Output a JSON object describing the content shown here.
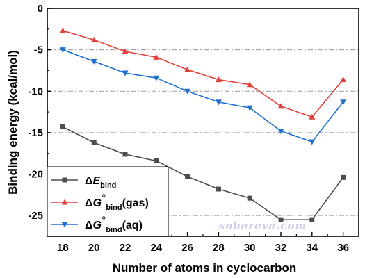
{
  "chart_data": {
    "type": "line",
    "title": "",
    "xlabel": "Number of atoms in cyclocarbon",
    "ylabel": "Binding energy (kcal/mol)",
    "x": [
      18,
      20,
      22,
      24,
      26,
      28,
      30,
      32,
      34,
      36
    ],
    "xticks": [
      "18",
      "20",
      "22",
      "24",
      "26",
      "28",
      "30",
      "32",
      "34",
      "36"
    ],
    "yticks": [
      "0",
      "-5",
      "-10",
      "-15",
      "-20",
      "-25"
    ],
    "xlim": [
      17,
      37
    ],
    "ylim": [
      -27.5,
      0
    ],
    "grid": "horizontal dash-dot at y ticks",
    "legend_position": "bottom-left",
    "series": [
      {
        "name": "ΔEbind",
        "legend": {
          "pre": "Δ",
          "italic": "E",
          "sub": "bind",
          "post": ""
        },
        "color": "#4d4d4d",
        "marker": "square",
        "values": [
          -14.3,
          -16.2,
          -17.6,
          -18.4,
          -20.3,
          -21.8,
          -22.9,
          -25.5,
          -25.5,
          -20.4
        ]
      },
      {
        "name": "ΔG°bind(gas)",
        "legend": {
          "pre": "Δ",
          "italic": "G",
          "sup": "°",
          "sub": "bind",
          "post": "(gas)"
        },
        "color": "#e0413a",
        "marker": "triangle-up",
        "values": [
          -2.7,
          -3.8,
          -5.2,
          -5.9,
          -7.4,
          -8.6,
          -9.2,
          -11.8,
          -13.1,
          -8.6
        ]
      },
      {
        "name": "ΔG°bind(aq)",
        "legend": {
          "pre": "Δ",
          "italic": "G",
          "sup": "°",
          "sub": "bind",
          "post": "(aq)"
        },
        "color": "#1f6fd1",
        "marker": "triangle-down",
        "values": [
          -5.0,
          -6.4,
          -7.8,
          -8.4,
          -10.0,
          -11.3,
          -12.0,
          -14.8,
          -16.1,
          -11.3
        ]
      }
    ],
    "watermark": "sobereva.com"
  }
}
